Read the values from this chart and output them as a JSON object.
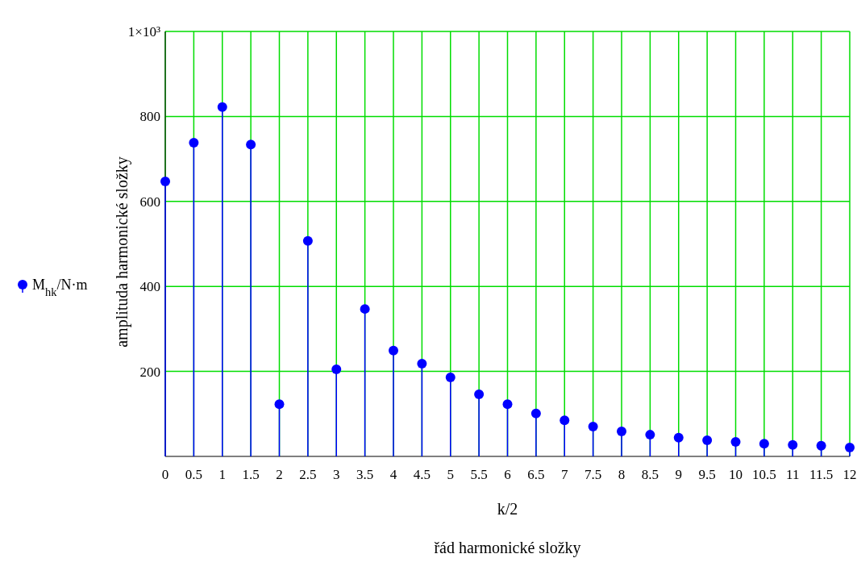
{
  "chart_data": {
    "type": "lollipop",
    "ylabel": "amplituda harmonické složky",
    "xlabel": "řád harmonické složky",
    "annotations": [
      "k/2"
    ],
    "x": [
      0,
      0.5,
      1,
      1.5,
      2,
      2.5,
      3,
      3.5,
      4,
      4.5,
      5,
      5.5,
      6,
      6.5,
      7,
      7.5,
      8,
      8.5,
      9,
      9.5,
      10,
      10.5,
      11,
      11.5,
      12
    ],
    "series": [
      {
        "name": "M$_{hk}$/N·m",
        "color": "#0000ff",
        "values": [
          647,
          738,
          822,
          734,
          123,
          507,
          205,
          347,
          249,
          218,
          186,
          146,
          123,
          101,
          85,
          70,
          59,
          51,
          44,
          38,
          34,
          30,
          27,
          25,
          21
        ]
      }
    ],
    "xlim": [
      0,
      12
    ],
    "xticks": [
      0,
      0.5,
      1,
      1.5,
      2,
      2.5,
      3,
      3.5,
      4,
      4.5,
      5,
      5.5,
      6,
      6.5,
      7,
      7.5,
      8,
      8.5,
      9,
      9.5,
      10,
      10.5,
      11,
      11.5,
      12
    ],
    "ylim": [
      0,
      1000
    ],
    "yticks": [
      200,
      400,
      600,
      800,
      {
        "value": 1000,
        "label": "1×10³"
      }
    ],
    "grid": true,
    "marker": "circle"
  }
}
